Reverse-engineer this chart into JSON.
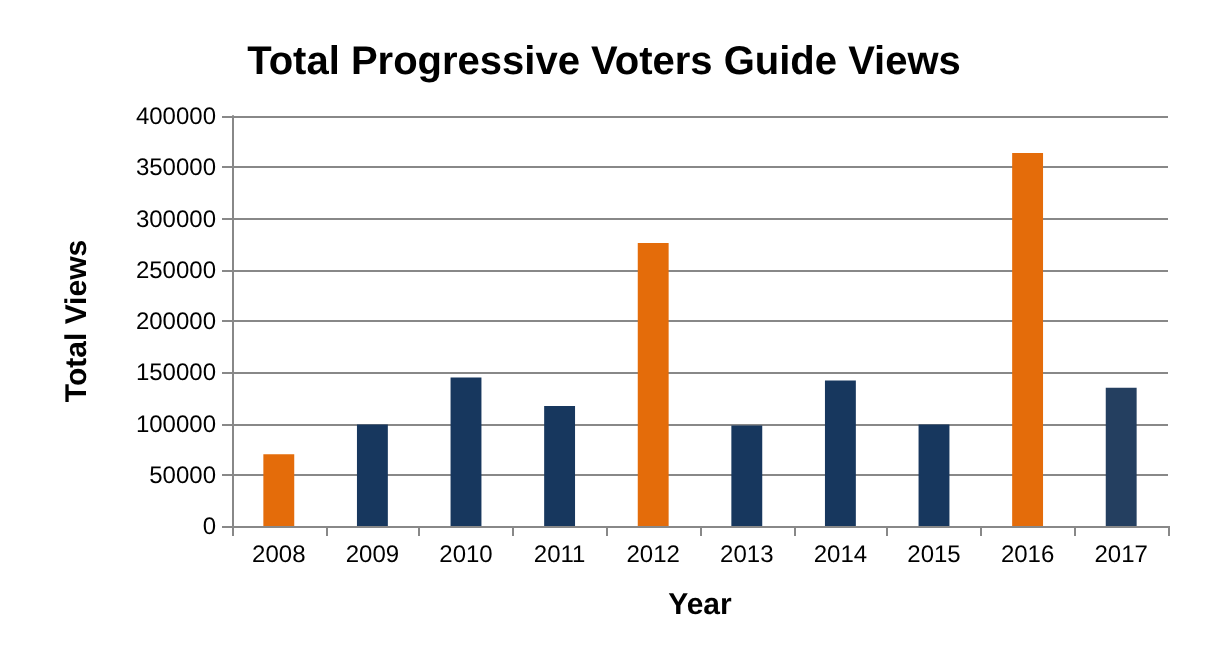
{
  "chart_data": {
    "type": "bar",
    "title": "Total Progressive Voters Guide Views",
    "xlabel": "Year",
    "ylabel": "Total Views",
    "categories": [
      "2008",
      "2009",
      "2010",
      "2011",
      "2012",
      "2013",
      "2014",
      "2015",
      "2016",
      "2017"
    ],
    "values": [
      70000,
      99000,
      145000,
      117000,
      276000,
      98000,
      142000,
      99000,
      364000,
      135000
    ],
    "colors": [
      "#e46c0a",
      "#17375e",
      "#17375e",
      "#17375e",
      "#e46c0a",
      "#17375e",
      "#17375e",
      "#17375e",
      "#e46c0a",
      "#243f60"
    ],
    "ylim": [
      0,
      400000
    ],
    "yticks": [
      0,
      50000,
      100000,
      150000,
      200000,
      250000,
      300000,
      350000,
      400000
    ],
    "grid": "y"
  }
}
